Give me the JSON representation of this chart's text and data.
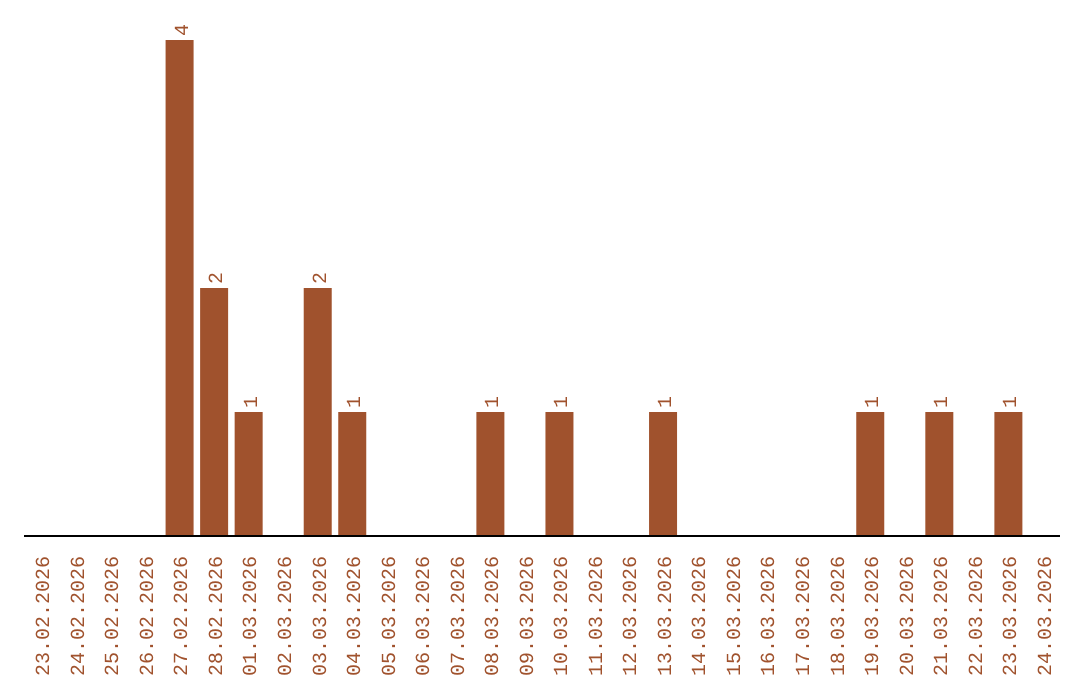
{
  "chart_data": {
    "type": "bar",
    "categories": [
      "23.02.2026",
      "24.02.2026",
      "25.02.2026",
      "26.02.2026",
      "27.02.2026",
      "28.02.2026",
      "01.03.2026",
      "02.03.2026",
      "03.03.2026",
      "04.03.2026",
      "05.03.2026",
      "06.03.2026",
      "07.03.2026",
      "08.03.2026",
      "09.03.2026",
      "10.03.2026",
      "11.03.2026",
      "12.03.2026",
      "13.03.2026",
      "14.03.2026",
      "15.03.2026",
      "16.03.2026",
      "17.03.2026",
      "18.03.2026",
      "19.03.2026",
      "20.03.2026",
      "21.03.2026",
      "22.03.2026",
      "23.03.2026",
      "24.03.2026"
    ],
    "values": [
      0,
      0,
      0,
      0,
      4,
      2,
      1,
      0,
      2,
      1,
      0,
      0,
      0,
      1,
      0,
      1,
      0,
      0,
      1,
      0,
      0,
      0,
      0,
      0,
      1,
      0,
      1,
      0,
      1,
      0
    ],
    "value_labels": [
      null,
      null,
      null,
      null,
      "4",
      "2",
      "1",
      null,
      "2",
      "1",
      null,
      null,
      null,
      "1",
      null,
      "1",
      null,
      null,
      "1",
      null,
      null,
      null,
      null,
      null,
      "1",
      null,
      "1",
      null,
      "1",
      null
    ],
    "color": "#a0522d",
    "tick_labels": "x",
    "grid": false,
    "legend": false
  }
}
